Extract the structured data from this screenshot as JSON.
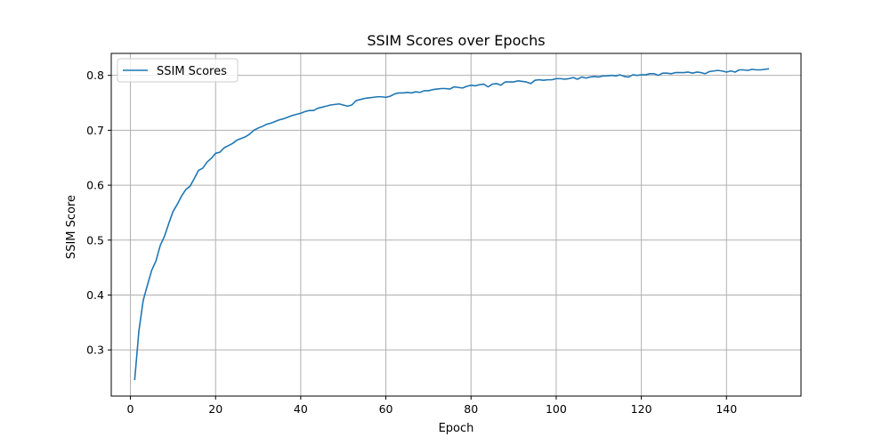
{
  "chart_data": {
    "type": "line",
    "title": "SSIM Scores over Epochs",
    "xlabel": "Epoch",
    "ylabel": "SSIM Score",
    "xlim": [
      -4.5,
      157.5
    ],
    "ylim": [
      0.216,
      0.84
    ],
    "xticks": [
      0,
      20,
      40,
      60,
      80,
      100,
      120,
      140
    ],
    "yticks": [
      0.3,
      0.4,
      0.5,
      0.6,
      0.7,
      0.8
    ],
    "grid": true,
    "legend": {
      "position": "top-left",
      "entries": [
        "SSIM Scores"
      ]
    },
    "colors": {
      "series": "#1f77b4",
      "grid": "#b0b0b0"
    },
    "series": [
      {
        "name": "SSIM Scores",
        "x": [
          1,
          2,
          3,
          4,
          5,
          6,
          7,
          8,
          9,
          10,
          11,
          12,
          13,
          14,
          15,
          16,
          17,
          18,
          19,
          20,
          21,
          22,
          23,
          24,
          25,
          26,
          27,
          28,
          29,
          30,
          31,
          32,
          33,
          34,
          35,
          36,
          37,
          38,
          39,
          40,
          41,
          42,
          43,
          44,
          45,
          46,
          47,
          48,
          49,
          50,
          51,
          52,
          53,
          54,
          55,
          56,
          57,
          58,
          59,
          60,
          61,
          62,
          63,
          64,
          65,
          66,
          67,
          68,
          69,
          70,
          71,
          72,
          73,
          74,
          75,
          76,
          77,
          78,
          79,
          80,
          81,
          82,
          83,
          84,
          85,
          86,
          87,
          88,
          89,
          90,
          91,
          92,
          93,
          94,
          95,
          96,
          97,
          98,
          99,
          100,
          101,
          102,
          103,
          104,
          105,
          106,
          107,
          108,
          109,
          110,
          111,
          112,
          113,
          114,
          115,
          116,
          117,
          118,
          119,
          120,
          121,
          122,
          123,
          124,
          125,
          126,
          127,
          128,
          129,
          130,
          131,
          132,
          133,
          134,
          135,
          136,
          137,
          138,
          139,
          140,
          141,
          142,
          143,
          144,
          145,
          146,
          147,
          148,
          149,
          150
        ],
        "values": [
          0.245,
          0.335,
          0.39,
          0.418,
          0.445,
          0.462,
          0.49,
          0.507,
          0.53,
          0.552,
          0.565,
          0.58,
          0.592,
          0.598,
          0.612,
          0.627,
          0.631,
          0.642,
          0.649,
          0.658,
          0.66,
          0.668,
          0.672,
          0.676,
          0.682,
          0.685,
          0.688,
          0.693,
          0.7,
          0.704,
          0.707,
          0.711,
          0.713,
          0.716,
          0.719,
          0.721,
          0.724,
          0.727,
          0.729,
          0.731,
          0.734,
          0.736,
          0.736,
          0.74,
          0.742,
          0.744,
          0.746,
          0.747,
          0.748,
          0.746,
          0.744,
          0.746,
          0.754,
          0.756,
          0.758,
          0.759,
          0.76,
          0.761,
          0.761,
          0.76,
          0.762,
          0.766,
          0.768,
          0.768,
          0.769,
          0.768,
          0.77,
          0.769,
          0.772,
          0.772,
          0.774,
          0.775,
          0.776,
          0.776,
          0.775,
          0.779,
          0.778,
          0.777,
          0.78,
          0.782,
          0.781,
          0.783,
          0.784,
          0.779,
          0.784,
          0.785,
          0.782,
          0.788,
          0.788,
          0.788,
          0.79,
          0.789,
          0.788,
          0.785,
          0.791,
          0.792,
          0.791,
          0.792,
          0.792,
          0.794,
          0.794,
          0.793,
          0.794,
          0.796,
          0.793,
          0.797,
          0.795,
          0.797,
          0.798,
          0.797,
          0.799,
          0.799,
          0.8,
          0.799,
          0.801,
          0.798,
          0.797,
          0.801,
          0.8,
          0.801,
          0.801,
          0.803,
          0.803,
          0.8,
          0.804,
          0.804,
          0.803,
          0.805,
          0.805,
          0.805,
          0.806,
          0.804,
          0.806,
          0.805,
          0.803,
          0.807,
          0.808,
          0.809,
          0.808,
          0.806,
          0.808,
          0.806,
          0.81,
          0.81,
          0.809,
          0.811,
          0.81,
          0.81,
          0.811,
          0.812
        ]
      }
    ]
  }
}
